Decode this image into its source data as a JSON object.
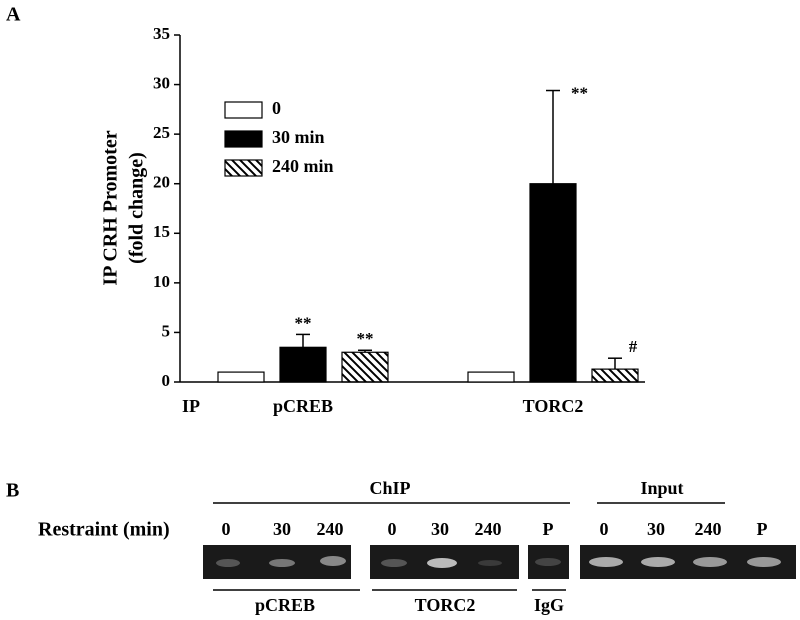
{
  "panel_labels": [
    "A",
    "B"
  ],
  "chart_data": {
    "type": "bar",
    "ylabel": [
      "IP CRH Promoter",
      "(fold change)"
    ],
    "xlabel": "IP",
    "categories": [
      "pCREB",
      "TORC2"
    ],
    "series": [
      {
        "name": "0",
        "color": "#ffffff",
        "values": [
          1,
          1
        ],
        "errors": [
          null,
          null
        ],
        "annotations": [
          null,
          null
        ]
      },
      {
        "name": "30 min",
        "color": "#000000",
        "values": [
          3.5,
          20
        ],
        "errors": [
          1.3,
          9.4
        ],
        "annotations": [
          "**",
          "**"
        ]
      },
      {
        "name": "240 min",
        "color": "hatch",
        "values": [
          3,
          1.3
        ],
        "errors": [
          0.2,
          1.1
        ],
        "annotations": [
          "**",
          "#"
        ]
      }
    ],
    "ylim": [
      0,
      35
    ],
    "yticks": [
      0,
      5,
      10,
      15,
      20,
      25,
      30,
      35
    ],
    "legend": "upper left"
  },
  "gel": {
    "groups": [
      "ChIP",
      "Input"
    ],
    "row_label": "Restraint (min)",
    "lanes": [
      "0",
      "30",
      "240",
      "0",
      "30",
      "240",
      "P",
      "0",
      "30",
      "240",
      "P"
    ],
    "antibodies": [
      "pCREB",
      "TORC2",
      "IgG"
    ]
  }
}
